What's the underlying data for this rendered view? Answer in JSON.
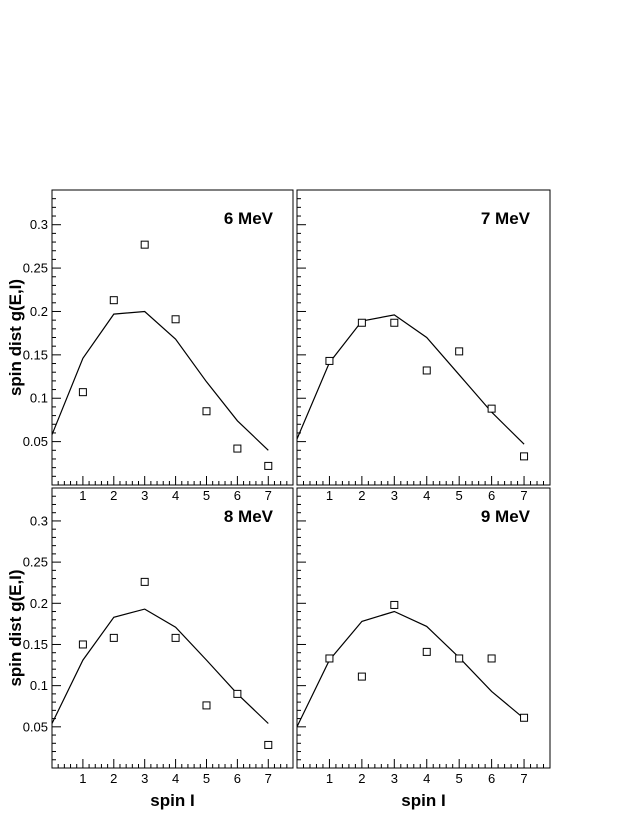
{
  "chart_data": [
    {
      "type": "scatter",
      "title": "6 MeV",
      "xlabel": "",
      "ylabel": "spin dist g(E,I)",
      "xlim": [
        0,
        7.8
      ],
      "ylim": [
        0,
        0.34
      ],
      "xticks": [
        1,
        2,
        3,
        4,
        5,
        6,
        7
      ],
      "yticks": [
        0.05,
        0.1,
        0.15,
        0.2,
        0.25,
        0.3
      ],
      "model_curve": {
        "x": [
          0,
          1,
          2,
          3,
          4,
          5,
          6,
          7
        ],
        "y": [
          0.058,
          0.146,
          0.197,
          0.2,
          0.168,
          0.119,
          0.074,
          0.04
        ]
      },
      "points": {
        "x": [
          1,
          2,
          3,
          4,
          5,
          6,
          7
        ],
        "y": [
          0.107,
          0.213,
          0.277,
          0.191,
          0.085,
          0.042,
          0.022
        ]
      }
    },
    {
      "type": "scatter",
      "title": "7 MeV",
      "xlabel": "",
      "ylabel": "",
      "xlim": [
        0,
        7.8
      ],
      "ylim": [
        0,
        0.34
      ],
      "xticks": [
        1,
        2,
        3,
        4,
        5,
        6,
        7
      ],
      "yticks": [
        0.05,
        0.1,
        0.15,
        0.2,
        0.25,
        0.3
      ],
      "model_curve": {
        "x": [
          0,
          1,
          2,
          3,
          4,
          5,
          6,
          7
        ],
        "y": [
          0.053,
          0.141,
          0.189,
          0.196,
          0.17,
          0.127,
          0.084,
          0.047
        ]
      },
      "points": {
        "x": [
          1,
          2,
          3,
          4,
          5,
          6,
          7
        ],
        "y": [
          0.143,
          0.187,
          0.187,
          0.132,
          0.154,
          0.088,
          0.033
        ]
      }
    },
    {
      "type": "scatter",
      "title": "8 MeV",
      "xlabel": "spin I",
      "ylabel": "spin dist g(E,I)",
      "xlim": [
        0,
        7.8
      ],
      "ylim": [
        0,
        0.34
      ],
      "xticks": [
        1,
        2,
        3,
        4,
        5,
        6,
        7
      ],
      "yticks": [
        0.05,
        0.1,
        0.15,
        0.2,
        0.25,
        0.3
      ],
      "model_curve": {
        "x": [
          0,
          1,
          2,
          3,
          4,
          5,
          6,
          7
        ],
        "y": [
          0.054,
          0.131,
          0.183,
          0.193,
          0.171,
          0.131,
          0.09,
          0.054
        ]
      },
      "points": {
        "x": [
          1,
          2,
          3,
          4,
          5,
          6,
          7
        ],
        "y": [
          0.15,
          0.158,
          0.226,
          0.158,
          0.076,
          0.09,
          0.028
        ]
      }
    },
    {
      "type": "scatter",
      "title": "9 MeV",
      "xlabel": "spin I",
      "ylabel": "",
      "xlim": [
        0,
        7.8
      ],
      "ylim": [
        0,
        0.34
      ],
      "xticks": [
        1,
        2,
        3,
        4,
        5,
        6,
        7
      ],
      "yticks": [
        0.05,
        0.1,
        0.15,
        0.2,
        0.25,
        0.3
      ],
      "model_curve": {
        "x": [
          0,
          1,
          2,
          3,
          4,
          5,
          6,
          7
        ],
        "y": [
          0.05,
          0.131,
          0.178,
          0.19,
          0.172,
          0.134,
          0.093,
          0.06
        ]
      },
      "points": {
        "x": [
          1,
          2,
          3,
          4,
          5,
          6,
          7
        ],
        "y": [
          0.133,
          0.111,
          0.198,
          0.141,
          0.133,
          0.133,
          0.061
        ]
      }
    }
  ]
}
